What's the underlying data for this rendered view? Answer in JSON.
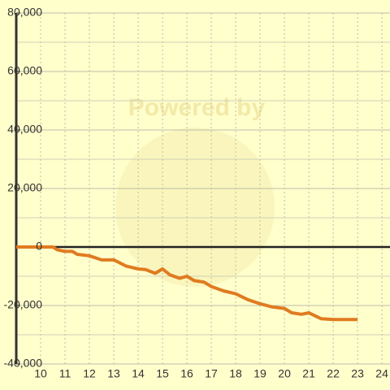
{
  "chart_data": {
    "type": "line",
    "watermark": "Powered by",
    "x": [
      9,
      10,
      10.5,
      10.7,
      11,
      11.3,
      11.5,
      12,
      12.5,
      13,
      13.5,
      14,
      14.3,
      14.7,
      15,
      15.3,
      15.7,
      16,
      16.3,
      16.7,
      17,
      17.5,
      18,
      18.5,
      19,
      19.5,
      20,
      20.3,
      20.7,
      21,
      21.5,
      22,
      23
    ],
    "series": [
      {
        "color": "#e07b20",
        "values": [
          0,
          0,
          0,
          -1000,
          -1500,
          -1500,
          -2500,
          -3000,
          -4400,
          -4400,
          -6500,
          -7500,
          -7700,
          -9000,
          -7500,
          -9500,
          -10700,
          -10000,
          -11500,
          -12000,
          -13500,
          -15000,
          -16000,
          -18000,
          -19400,
          -20500,
          -21000,
          -22500,
          -23000,
          -22500,
          -24500,
          -24800,
          -24800
        ]
      }
    ],
    "xlim": [
      9,
      24.33
    ],
    "xticks": [
      10,
      11,
      12,
      13,
      14,
      15,
      16,
      17,
      18,
      19,
      20,
      21,
      22,
      23,
      24
    ],
    "ylim": [
      -40000,
      80000
    ],
    "yticks": [
      {
        "value": -40000,
        "label": "-40,000"
      },
      {
        "value": -20000,
        "label": "-20,000"
      },
      0,
      {
        "value": 20000,
        "label": "20,000"
      },
      {
        "value": 40000,
        "label": "40,000"
      },
      {
        "value": 60000,
        "label": "60,000"
      },
      {
        "value": 80000,
        "label": "80,000"
      }
    ],
    "minor_yticks": [
      -30000,
      -10000,
      10000,
      30000,
      50000,
      70000
    ],
    "grid": true
  }
}
